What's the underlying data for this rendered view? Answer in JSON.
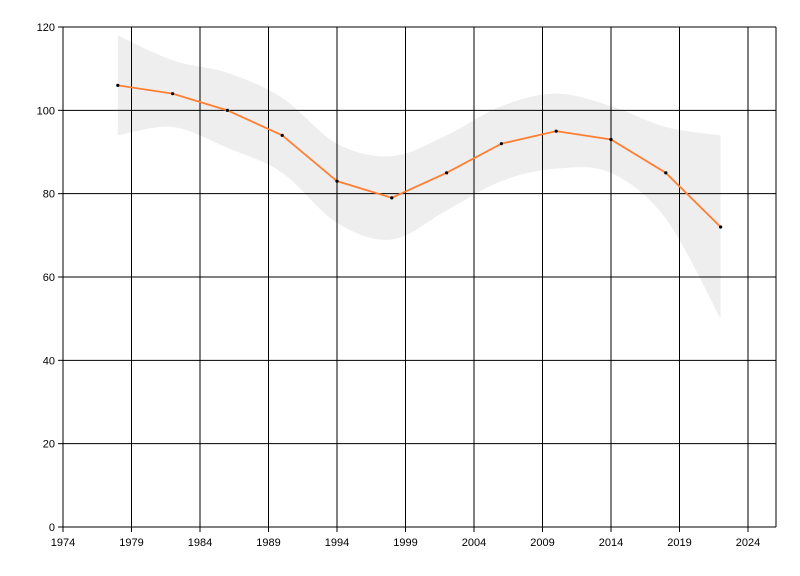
{
  "chart_data": {
    "type": "line",
    "title": "",
    "xlabel": "",
    "ylabel": "",
    "xlim": [
      1974,
      2026
    ],
    "ylim": [
      0,
      120
    ],
    "x_ticks": [
      "1974",
      "1979",
      "1984",
      "1989",
      "1994",
      "1999",
      "2004",
      "2009",
      "2014",
      "2019",
      "2024"
    ],
    "y_ticks": [
      "0",
      "20",
      "40",
      "60",
      "80",
      "100",
      "120"
    ],
    "grid": true,
    "series": [
      {
        "x": [
          1978,
          1982,
          1986,
          1990,
          1994,
          1998,
          2002,
          2006,
          2010,
          2014,
          2018,
          2022
        ],
        "values": [
          106,
          104,
          100,
          94,
          83,
          79,
          85,
          92,
          95,
          93,
          85,
          72
        ],
        "color": "#ff7f32",
        "marker_color": "#000000"
      }
    ],
    "band": {
      "x": [
        1978,
        1982,
        1986,
        1990,
        1994,
        1998,
        2002,
        2006,
        2010,
        2014,
        2018,
        2022
      ],
      "upper": [
        118,
        112,
        109,
        103,
        92,
        89,
        94,
        101,
        104,
        101,
        96,
        94
      ],
      "lower": [
        94,
        96,
        91,
        85,
        73,
        69,
        76,
        83,
        86,
        85,
        74,
        50
      ],
      "color": "#eeeeee"
    }
  }
}
